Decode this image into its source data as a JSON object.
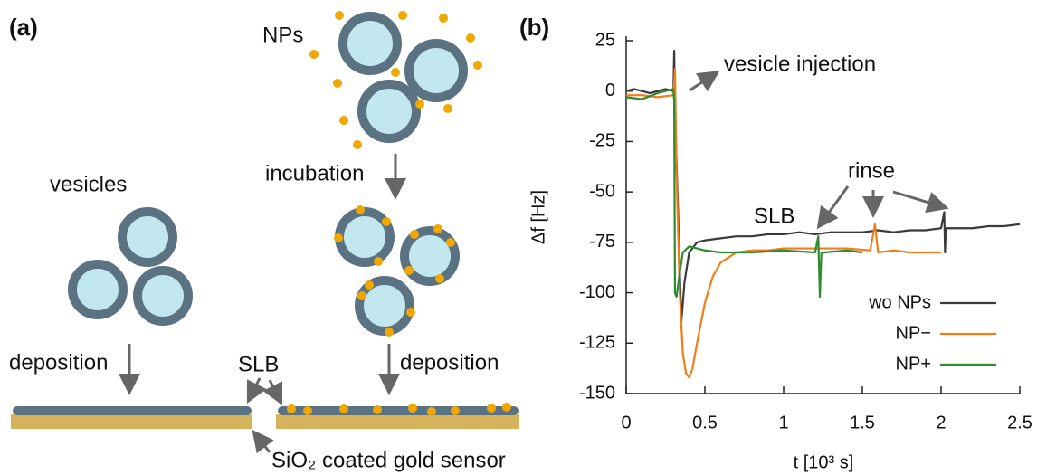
{
  "panel_labels": [
    "(a)",
    "(b)"
  ],
  "diagram": {
    "nps": "NPs",
    "vesicles": "vesicles",
    "incubation": "incubation",
    "deposition_left": "deposition",
    "slb": "SLB",
    "deposition_right": "deposition",
    "sensor": "SiO₂ coated gold sensor"
  },
  "chart_data": {
    "type": "line",
    "xlabel": "t [10³ s]",
    "ylabel": "Δf [Hz]",
    "annotations": [
      "vesicle injection",
      "rinse",
      "SLB"
    ],
    "xlim": [
      0,
      2.5
    ],
    "xticks": [
      0,
      0.5,
      1,
      1.5,
      2,
      2.5
    ],
    "ylim": [
      -150,
      25
    ],
    "yticks": [
      25,
      0,
      -25,
      -50,
      -75,
      -100,
      -125,
      -150
    ],
    "legend": "lower right",
    "series": [
      {
        "name": "wo NPs",
        "color": "#3a3a3a",
        "x": [
          0,
          0.05,
          0.1,
          0.15,
          0.2,
          0.25,
          0.3,
          0.305,
          0.31,
          0.33,
          0.35,
          0.37,
          0.4,
          0.45,
          0.5,
          0.6,
          0.7,
          0.8,
          0.9,
          1.0,
          1.1,
          1.2,
          1.3,
          1.4,
          1.5,
          1.6,
          1.7,
          1.8,
          1.9,
          2.0,
          2.02,
          2.025,
          2.03,
          2.1,
          2.2,
          2.3,
          2.4,
          2.5
        ],
        "values": [
          0,
          1,
          0,
          -1,
          0,
          1,
          0,
          20,
          -10,
          -60,
          -115,
          -95,
          -80,
          -75,
          -74,
          -73,
          -72,
          -72,
          -71,
          -71,
          -70,
          -71,
          -70,
          -70,
          -70,
          -69,
          -70,
          -69,
          -69,
          -68,
          -60,
          -80,
          -68,
          -68,
          -68,
          -67,
          -67,
          -66
        ]
      },
      {
        "name": "NP−",
        "color": "#f07c1a",
        "x": [
          0,
          0.1,
          0.2,
          0.3,
          0.31,
          0.32,
          0.34,
          0.36,
          0.38,
          0.4,
          0.42,
          0.45,
          0.5,
          0.55,
          0.6,
          0.7,
          0.8,
          0.9,
          1.0,
          1.2,
          1.4,
          1.55,
          1.58,
          1.6,
          1.7,
          1.8,
          1.9,
          2.0
        ],
        "values": [
          -2,
          -2,
          -3,
          -2,
          11,
          -40,
          -100,
          -130,
          -140,
          -142,
          -138,
          -125,
          -105,
          -92,
          -85,
          -80,
          -79,
          -79,
          -78,
          -78,
          -78,
          -79,
          -66,
          -80,
          -79,
          -80,
          -80,
          -80
        ]
      },
      {
        "name": "NP+",
        "color": "#2e8b2e",
        "x": [
          0,
          0.1,
          0.2,
          0.3,
          0.305,
          0.31,
          0.32,
          0.34,
          0.36,
          0.4,
          0.5,
          0.6,
          0.8,
          1.0,
          1.2,
          1.22,
          1.23,
          1.24,
          1.26,
          1.4,
          1.5
        ],
        "values": [
          -3,
          -4,
          -1,
          1,
          -5,
          -100,
          -102,
          -90,
          -80,
          -77,
          -79,
          -80,
          -80,
          -79,
          -80,
          -72,
          -102,
          -80,
          -80,
          -79,
          -80
        ]
      }
    ]
  }
}
